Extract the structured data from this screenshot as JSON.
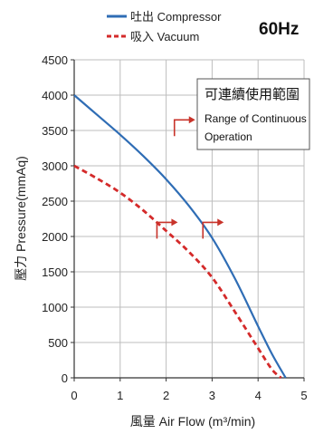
{
  "chart_data": {
    "type": "line",
    "frequency_label": "60Hz",
    "xlabel": "風量 Air Flow (m³/min)",
    "ylabel": "壓力 Pressure(mmAq)",
    "xlim": [
      0,
      5
    ],
    "ylim": [
      0,
      4500
    ],
    "x_ticks": [
      "0",
      "1",
      "2",
      "3",
      "4",
      "5"
    ],
    "y_ticks": [
      "0",
      "500",
      "1000",
      "1500",
      "2000",
      "2500",
      "3000",
      "3500",
      "4000",
      "4500"
    ],
    "grid": true,
    "legend_position": "top-left",
    "series": [
      {
        "name": "吐出 Compressor",
        "color": "#2f6db5",
        "style": "solid",
        "x": [
          0,
          0.5,
          1.0,
          1.5,
          2.0,
          2.5,
          3.0,
          3.5,
          4.0,
          4.3,
          4.6
        ],
        "y": [
          4000,
          3720,
          3440,
          3140,
          2810,
          2430,
          1980,
          1400,
          730,
          340,
          0
        ]
      },
      {
        "name": "吸入 Vacuum",
        "color": "#d42a2a",
        "style": "dashed",
        "x": [
          0,
          0.5,
          1.0,
          1.5,
          2.0,
          2.5,
          3.0,
          3.5,
          4.0,
          4.3,
          4.5
        ],
        "y": [
          3000,
          2820,
          2620,
          2370,
          2080,
          1780,
          1420,
          930,
          420,
          120,
          0
        ]
      }
    ],
    "annotation": {
      "line1": "可連續使用範圍",
      "line2": "Range of Continuous",
      "line3": "Operation"
    },
    "markers": [
      {
        "x": 1.8,
        "y": 2200
      },
      {
        "x": 2.8,
        "y": 2200
      },
      {
        "x": 2.18,
        "y": 3650
      }
    ]
  }
}
